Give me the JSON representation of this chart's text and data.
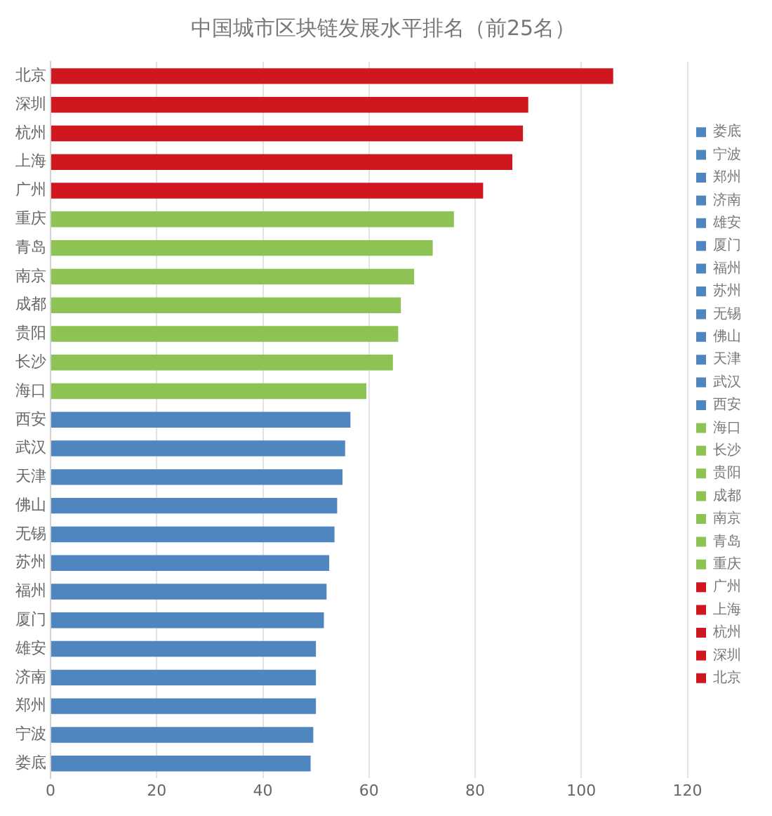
{
  "chart_data": {
    "type": "bar",
    "title": "中国城市区块链发展水平排名（前25名）",
    "orientation": "horizontal",
    "stacked": true,
    "categories": [
      "北京",
      "深圳",
      "杭州",
      "上海",
      "广州",
      "重庆",
      "青岛",
      "南京",
      "成都",
      "贵阳",
      "长沙",
      "海口",
      "西安",
      "武汉",
      "天津",
      "佛山",
      "无锡",
      "苏州",
      "福州",
      "厦门",
      "雄安",
      "济南",
      "郑州",
      "宁波",
      "娄底"
    ],
    "series": [
      {
        "name": "北京",
        "color": "#d0161e",
        "values": [
          106,
          null,
          null,
          null,
          null,
          null,
          null,
          null,
          null,
          null,
          null,
          null,
          null,
          null,
          null,
          null,
          null,
          null,
          null,
          null,
          null,
          null,
          null,
          null,
          null
        ]
      },
      {
        "name": "深圳",
        "color": "#d0161e",
        "values": [
          null,
          90,
          null,
          null,
          null,
          null,
          null,
          null,
          null,
          null,
          null,
          null,
          null,
          null,
          null,
          null,
          null,
          null,
          null,
          null,
          null,
          null,
          null,
          null,
          null
        ]
      },
      {
        "name": "杭州",
        "color": "#d0161e",
        "values": [
          null,
          null,
          89,
          null,
          null,
          null,
          null,
          null,
          null,
          null,
          null,
          null,
          null,
          null,
          null,
          null,
          null,
          null,
          null,
          null,
          null,
          null,
          null,
          null,
          null
        ]
      },
      {
        "name": "上海",
        "color": "#d0161e",
        "values": [
          null,
          null,
          null,
          87,
          null,
          null,
          null,
          null,
          null,
          null,
          null,
          null,
          null,
          null,
          null,
          null,
          null,
          null,
          null,
          null,
          null,
          null,
          null,
          null,
          null
        ]
      },
      {
        "name": "广州",
        "color": "#d0161e",
        "values": [
          null,
          null,
          null,
          null,
          81.5,
          null,
          null,
          null,
          null,
          null,
          null,
          null,
          null,
          null,
          null,
          null,
          null,
          null,
          null,
          null,
          null,
          null,
          null,
          null,
          null
        ]
      },
      {
        "name": "重庆",
        "color": "#8dc352",
        "values": [
          null,
          null,
          null,
          null,
          null,
          76,
          null,
          null,
          null,
          null,
          null,
          null,
          null,
          null,
          null,
          null,
          null,
          null,
          null,
          null,
          null,
          null,
          null,
          null,
          null
        ]
      },
      {
        "name": "青岛",
        "color": "#8dc352",
        "values": [
          null,
          null,
          null,
          null,
          null,
          null,
          72,
          null,
          null,
          null,
          null,
          null,
          null,
          null,
          null,
          null,
          null,
          null,
          null,
          null,
          null,
          null,
          null,
          null,
          null
        ]
      },
      {
        "name": "南京",
        "color": "#8dc352",
        "values": [
          null,
          null,
          null,
          null,
          null,
          null,
          null,
          68.5,
          null,
          null,
          null,
          null,
          null,
          null,
          null,
          null,
          null,
          null,
          null,
          null,
          null,
          null,
          null,
          null,
          null
        ]
      },
      {
        "name": "成都",
        "color": "#8dc352",
        "values": [
          null,
          null,
          null,
          null,
          null,
          null,
          null,
          null,
          66,
          null,
          null,
          null,
          null,
          null,
          null,
          null,
          null,
          null,
          null,
          null,
          null,
          null,
          null,
          null,
          null
        ]
      },
      {
        "name": "贵阳",
        "color": "#8dc352",
        "values": [
          null,
          null,
          null,
          null,
          null,
          null,
          null,
          null,
          null,
          65.5,
          null,
          null,
          null,
          null,
          null,
          null,
          null,
          null,
          null,
          null,
          null,
          null,
          null,
          null,
          null
        ]
      },
      {
        "name": "长沙",
        "color": "#8dc352",
        "values": [
          null,
          null,
          null,
          null,
          null,
          null,
          null,
          null,
          null,
          null,
          64.5,
          null,
          null,
          null,
          null,
          null,
          null,
          null,
          null,
          null,
          null,
          null,
          null,
          null,
          null
        ]
      },
      {
        "name": "海口",
        "color": "#8dc352",
        "values": [
          null,
          null,
          null,
          null,
          null,
          null,
          null,
          null,
          null,
          null,
          null,
          59.5,
          null,
          null,
          null,
          null,
          null,
          null,
          null,
          null,
          null,
          null,
          null,
          null,
          null
        ]
      },
      {
        "name": "西安",
        "color": "#4f86c0",
        "values": [
          null,
          null,
          null,
          null,
          null,
          null,
          null,
          null,
          null,
          null,
          null,
          null,
          56.5,
          null,
          null,
          null,
          null,
          null,
          null,
          null,
          null,
          null,
          null,
          null,
          null
        ]
      },
      {
        "name": "武汉",
        "color": "#4f86c0",
        "values": [
          null,
          null,
          null,
          null,
          null,
          null,
          null,
          null,
          null,
          null,
          null,
          null,
          null,
          55.5,
          null,
          null,
          null,
          null,
          null,
          null,
          null,
          null,
          null,
          null,
          null
        ]
      },
      {
        "name": "天津",
        "color": "#4f86c0",
        "values": [
          null,
          null,
          null,
          null,
          null,
          null,
          null,
          null,
          null,
          null,
          null,
          null,
          null,
          null,
          55,
          null,
          null,
          null,
          null,
          null,
          null,
          null,
          null,
          null,
          null
        ]
      },
      {
        "name": "佛山",
        "color": "#4f86c0",
        "values": [
          null,
          null,
          null,
          null,
          null,
          null,
          null,
          null,
          null,
          null,
          null,
          null,
          null,
          null,
          null,
          54,
          null,
          null,
          null,
          null,
          null,
          null,
          null,
          null,
          null
        ]
      },
      {
        "name": "无锡",
        "color": "#4f86c0",
        "values": [
          null,
          null,
          null,
          null,
          null,
          null,
          null,
          null,
          null,
          null,
          null,
          null,
          null,
          null,
          null,
          null,
          53.5,
          null,
          null,
          null,
          null,
          null,
          null,
          null,
          null
        ]
      },
      {
        "name": "苏州",
        "color": "#4f86c0",
        "values": [
          null,
          null,
          null,
          null,
          null,
          null,
          null,
          null,
          null,
          null,
          null,
          null,
          null,
          null,
          null,
          null,
          null,
          52.5,
          null,
          null,
          null,
          null,
          null,
          null,
          null
        ]
      },
      {
        "name": "福州",
        "color": "#4f86c0",
        "values": [
          null,
          null,
          null,
          null,
          null,
          null,
          null,
          null,
          null,
          null,
          null,
          null,
          null,
          null,
          null,
          null,
          null,
          null,
          52,
          null,
          null,
          null,
          null,
          null,
          null
        ]
      },
      {
        "name": "厦门",
        "color": "#4f86c0",
        "values": [
          null,
          null,
          null,
          null,
          null,
          null,
          null,
          null,
          null,
          null,
          null,
          null,
          null,
          null,
          null,
          null,
          null,
          null,
          null,
          51.5,
          null,
          null,
          null,
          null,
          null
        ]
      },
      {
        "name": "雄安",
        "color": "#4f86c0",
        "values": [
          null,
          null,
          null,
          null,
          null,
          null,
          null,
          null,
          null,
          null,
          null,
          null,
          null,
          null,
          null,
          null,
          null,
          null,
          null,
          null,
          50,
          null,
          null,
          null,
          null
        ]
      },
      {
        "name": "济南",
        "color": "#4f86c0",
        "values": [
          null,
          null,
          null,
          null,
          null,
          null,
          null,
          null,
          null,
          null,
          null,
          null,
          null,
          null,
          null,
          null,
          null,
          null,
          null,
          null,
          null,
          50,
          null,
          null,
          null
        ]
      },
      {
        "name": "郑州",
        "color": "#4f86c0",
        "values": [
          null,
          null,
          null,
          null,
          null,
          null,
          null,
          null,
          null,
          null,
          null,
          null,
          null,
          null,
          null,
          null,
          null,
          null,
          null,
          null,
          null,
          null,
          50,
          null,
          null
        ]
      },
      {
        "name": "宁波",
        "color": "#4f86c0",
        "values": [
          null,
          null,
          null,
          null,
          null,
          null,
          null,
          null,
          null,
          null,
          null,
          null,
          null,
          null,
          null,
          null,
          null,
          null,
          null,
          null,
          null,
          null,
          null,
          49.5,
          null
        ]
      },
      {
        "name": "娄底",
        "color": "#4f86c0",
        "values": [
          null,
          null,
          null,
          null,
          null,
          null,
          null,
          null,
          null,
          null,
          null,
          null,
          null,
          null,
          null,
          null,
          null,
          null,
          null,
          null,
          null,
          null,
          null,
          null,
          49
        ]
      }
    ],
    "xlim": [
      0,
      120
    ],
    "xticks": [
      0,
      20,
      40,
      60,
      80,
      100,
      120
    ],
    "grid": "x",
    "legend": "right"
  }
}
